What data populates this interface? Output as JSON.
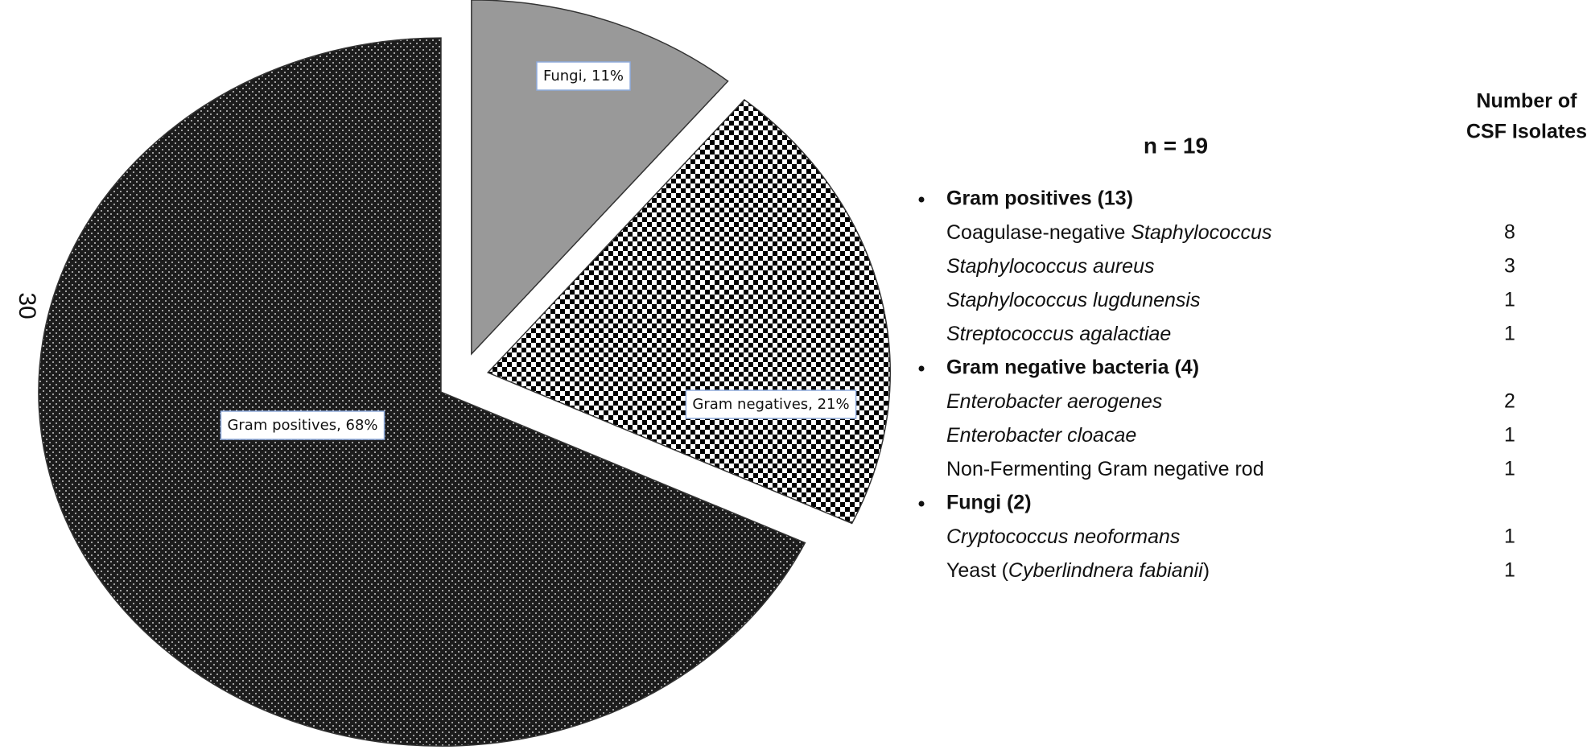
{
  "page_number": "30",
  "chart_data": {
    "type": "pie",
    "categories": [
      "Fungi",
      "Gram negatives",
      "Gram positives"
    ],
    "values": [
      11,
      21,
      68
    ],
    "value_labels": [
      "Fungi, 11%",
      "Gram negatives, 21%",
      "Gram positives, 68%"
    ],
    "colors": [
      "#999999",
      "#000000",
      "#1c1c1c"
    ]
  },
  "table": {
    "title": "n = 19",
    "header": [
      "Number of",
      "CSF Isolates"
    ],
    "groups": [
      {
        "name": "Gram positives (13)",
        "items": [
          {
            "segments": [
              {
                "text": "Coagulase-negative "
              },
              {
                "text": "Staphylococcus",
                "italic": true
              }
            ],
            "count": 8
          },
          {
            "segments": [
              {
                "text": "Staphylococcus aureus",
                "italic": true
              }
            ],
            "count": 3
          },
          {
            "segments": [
              {
                "text": "Staphylococcus lugdunensis",
                "italic": true
              }
            ],
            "count": 1
          },
          {
            "segments": [
              {
                "text": "Streptococcus agalactiae",
                "italic": true
              }
            ],
            "count": 1
          }
        ]
      },
      {
        "name": "Gram negative bacteria (4)",
        "items": [
          {
            "segments": [
              {
                "text": "Enterobacter aerogenes",
                "italic": true
              }
            ],
            "count": 2
          },
          {
            "segments": [
              {
                "text": "Enterobacter cloacae",
                "italic": true
              }
            ],
            "count": 1
          },
          {
            "segments": [
              {
                "text": "Non-Fermenting Gram negative rod"
              }
            ],
            "count": 1
          }
        ]
      },
      {
        "name": "Fungi (2)",
        "items": [
          {
            "segments": [
              {
                "text": "Cryptococcus neoformans",
                "italic": true
              }
            ],
            "count": 1
          },
          {
            "segments": [
              {
                "text": "Yeast ("
              },
              {
                "text": "Cyberlindnera fabianii",
                "italic": true
              },
              {
                "text": ")"
              }
            ],
            "count": 1
          }
        ]
      }
    ]
  }
}
